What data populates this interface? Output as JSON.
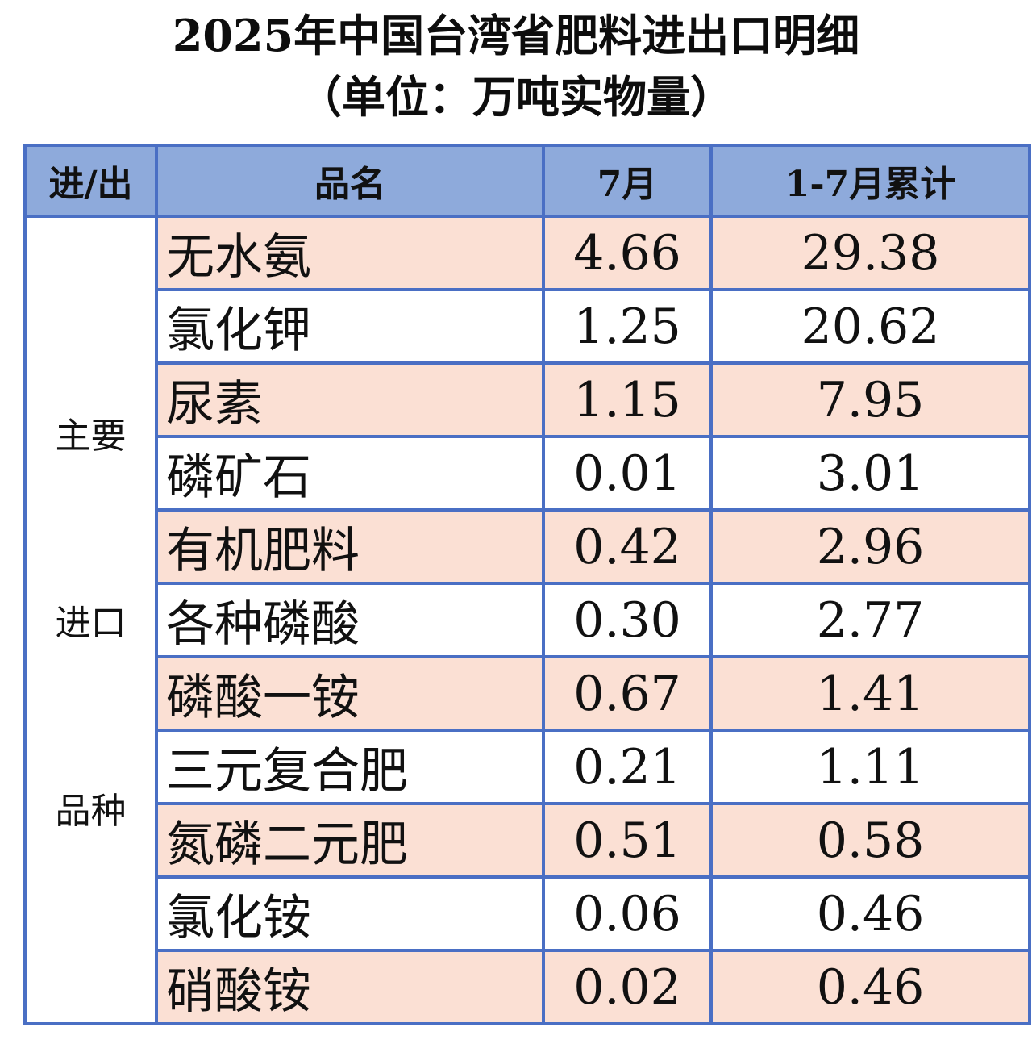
{
  "title_line1": "2025年中国台湾省肥料进出口明细",
  "title_line2": "（单位：万吨实物量）",
  "table": {
    "headers": [
      "进/出",
      "品名",
      "7月",
      "1-7月累计"
    ],
    "category_lines": [
      "主要",
      "进口",
      "品种"
    ],
    "rows": [
      {
        "name": "无水氨",
        "jul": "4.66",
        "ytd": "29.38"
      },
      {
        "name": "氯化钾",
        "jul": "1.25",
        "ytd": "20.62"
      },
      {
        "name": "尿素",
        "jul": "1.15",
        "ytd": "7.95"
      },
      {
        "name": "磷矿石",
        "jul": "0.01",
        "ytd": "3.01"
      },
      {
        "name": "有机肥料",
        "jul": "0.42",
        "ytd": "2.96"
      },
      {
        "name": "各种磷酸",
        "jul": "0.30",
        "ytd": "2.77"
      },
      {
        "name": "磷酸一铵",
        "jul": "0.67",
        "ytd": "1.41"
      },
      {
        "name": "三元复合肥",
        "jul": "0.21",
        "ytd": "1.11"
      },
      {
        "name": "氮磷二元肥",
        "jul": "0.51",
        "ytd": "0.58"
      },
      {
        "name": "氯化铵",
        "jul": "0.06",
        "ytd": "0.46"
      },
      {
        "name": "硝酸铵",
        "jul": "0.02",
        "ytd": "0.46"
      }
    ]
  },
  "colors": {
    "header_bg": "#8eaadb",
    "border": "#4a6fc4",
    "row_shade": "#fbe0d4",
    "row_plain": "#ffffff"
  }
}
